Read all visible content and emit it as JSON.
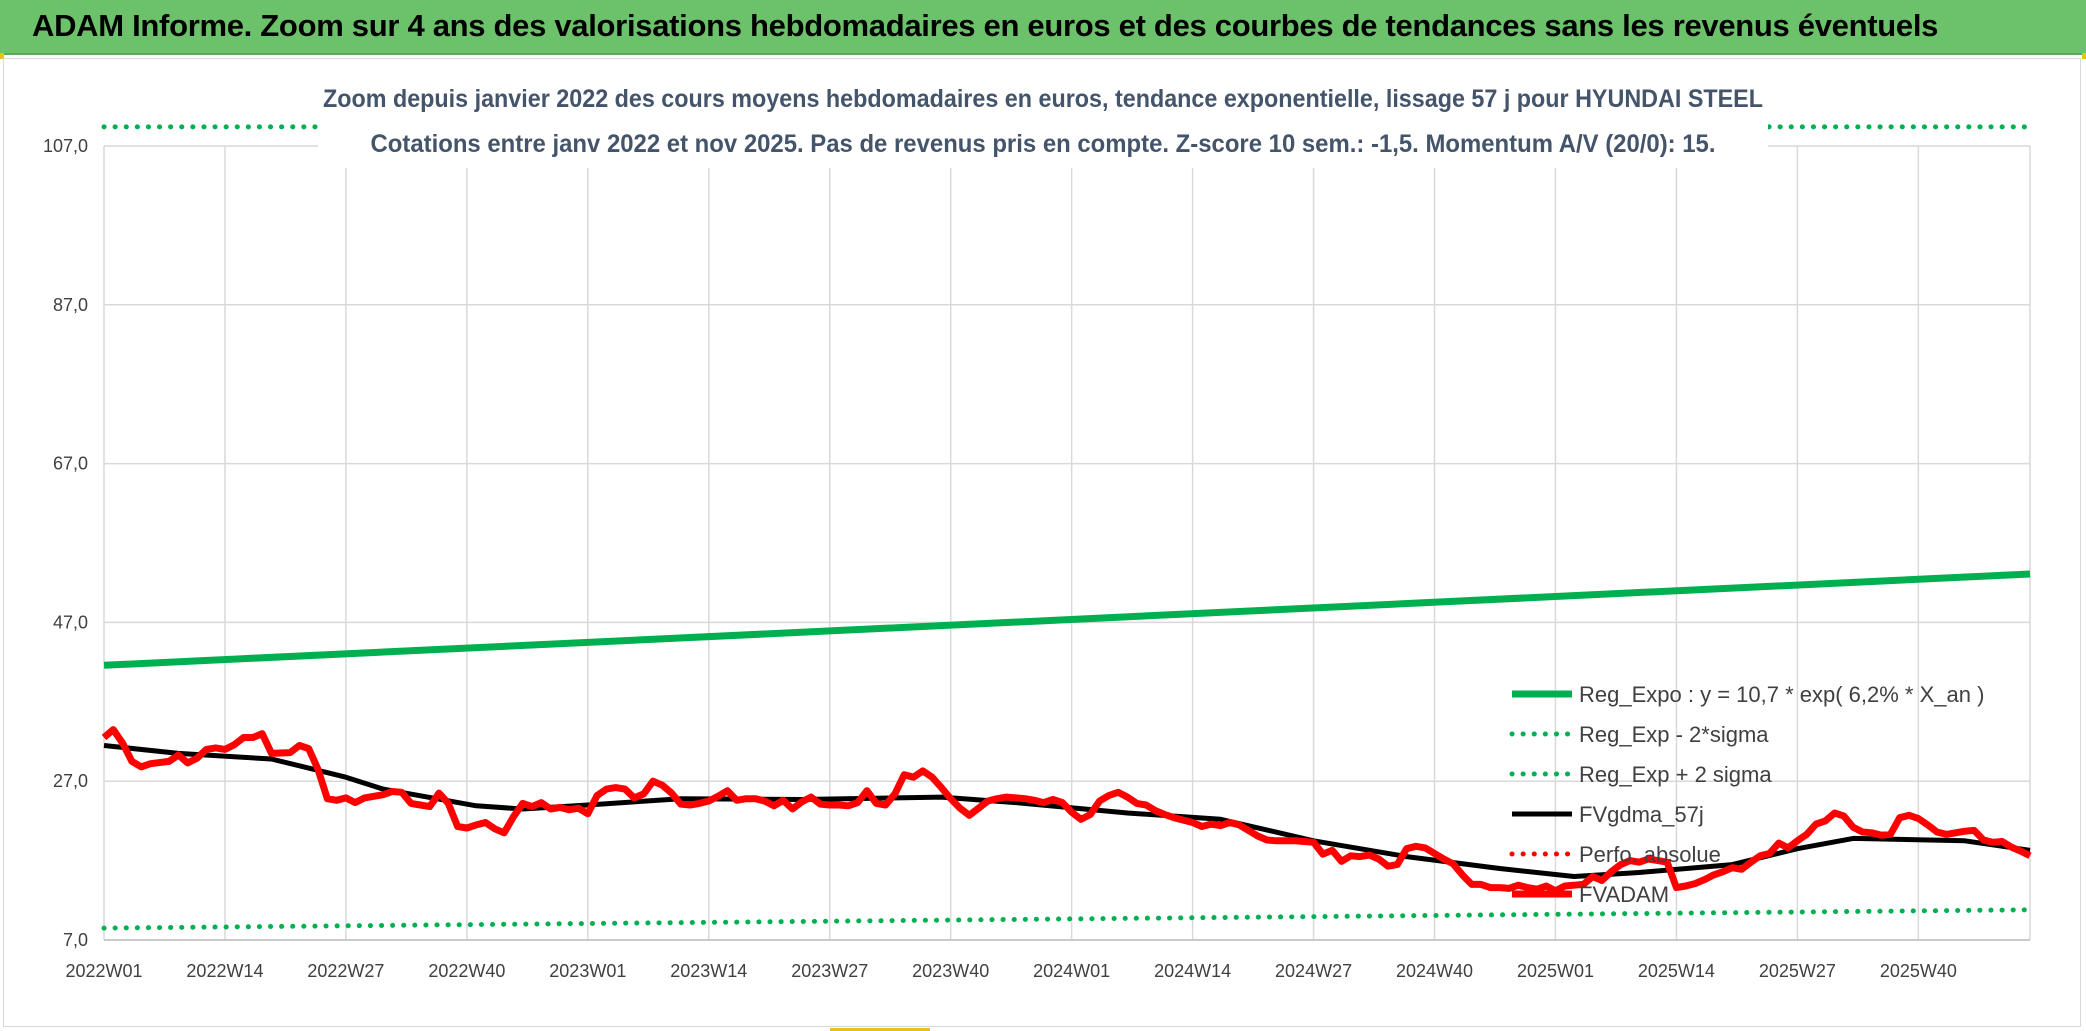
{
  "banner": {
    "title": "ADAM Informe. Zoom sur 4 ans des valorisations hebdomadaires en euros et des courbes de tendances sans les revenus éventuels"
  },
  "colors": {
    "banner_bg": "#6cc26a",
    "trend_green": "#00b050",
    "price_red": "#ff0000",
    "ma_black": "#000000",
    "title_text": "#44546a",
    "grid": "#d9d9d9"
  },
  "chart_data": {
    "type": "line",
    "title_line1": "Zoom depuis janvier 2022 des cours moyens hebdomadaires en euros, tendance exponentielle, lissage 57 j pour HYUNDAI STEEL",
    "title_line2": "Cotations entre janv 2022 et nov 2025. Pas de revenus pris en compte. Z-score 10 sem.: -1,5. Momentum A/V (20/0): 15.",
    "ylim": [
      7,
      107
    ],
    "yticks": [
      "7,0",
      "27,0",
      "47,0",
      "67,0",
      "87,0",
      "107,0"
    ],
    "ytick_values": [
      7,
      27,
      47,
      67,
      87,
      107
    ],
    "xtick_labels": [
      "2022W01",
      "2022W14",
      "2022W27",
      "2022W40",
      "2023W01",
      "2023W14",
      "2023W27",
      "2023W40",
      "2024W01",
      "2024W14",
      "2024W27",
      "2024W40",
      "2025W01",
      "2025W14",
      "2025W27",
      "2025W40"
    ],
    "xtick_index": [
      0,
      13,
      26,
      39,
      52,
      65,
      78,
      91,
      104,
      117,
      130,
      143,
      156,
      169,
      182,
      195
    ],
    "n_weeks": 207,
    "grid": true,
    "legend_position": "right",
    "series": [
      {
        "name": "Reg_Expo : y = 10,7 * exp( 6,2% *  X_an )",
        "style": "solid-thick",
        "color": "#00b050",
        "knots": [
          [
            0,
            41.6
          ],
          [
            207,
            53.1
          ]
        ]
      },
      {
        "name": "Reg_Exp - 2*sigma",
        "style": "dotted",
        "color": "#00b050",
        "knots": [
          [
            0,
            8.5
          ],
          [
            207,
            10.8
          ]
        ]
      },
      {
        "name": "Reg_Exp + 2 sigma",
        "style": "dotted",
        "color": "#00b050",
        "knots": [
          [
            0,
            109.4
          ],
          [
            207,
            109.4
          ]
        ]
      },
      {
        "name": "FVgdma_57j",
        "style": "solid",
        "color": "#000000",
        "knots": [
          [
            0,
            31.5
          ],
          [
            8,
            30.5
          ],
          [
            18,
            29.8
          ],
          [
            26,
            27.5
          ],
          [
            30,
            26.0
          ],
          [
            40,
            23.9
          ],
          [
            45,
            23.5
          ],
          [
            52,
            24.0
          ],
          [
            62,
            24.8
          ],
          [
            75,
            24.7
          ],
          [
            90,
            25.0
          ],
          [
            98,
            24.3
          ],
          [
            110,
            23.0
          ],
          [
            120,
            22.2
          ],
          [
            130,
            19.5
          ],
          [
            140,
            17.5
          ],
          [
            150,
            16.0
          ],
          [
            158,
            15.0
          ],
          [
            165,
            15.5
          ],
          [
            175,
            16.5
          ],
          [
            182,
            18.5
          ],
          [
            188,
            19.8
          ],
          [
            200,
            19.5
          ],
          [
            207,
            18.3
          ]
        ]
      },
      {
        "name": "Perfo. absolue",
        "style": "dotted",
        "color": "#ff0000",
        "knots": []
      },
      {
        "name": "FVADAM",
        "style": "solid-thick",
        "color": "#ff0000",
        "knots": [
          [
            0,
            32.5
          ],
          [
            1,
            33.5
          ],
          [
            2,
            31.8
          ],
          [
            3,
            29.5
          ],
          [
            4,
            28.8
          ],
          [
            5,
            29.2
          ],
          [
            7,
            29.5
          ],
          [
            8,
            30.3
          ],
          [
            9,
            29.3
          ],
          [
            10,
            29.9
          ],
          [
            11,
            31.0
          ],
          [
            12,
            31.2
          ],
          [
            13,
            31.0
          ],
          [
            14,
            31.6
          ],
          [
            15,
            32.5
          ],
          [
            16,
            32.5
          ],
          [
            17,
            33.0
          ],
          [
            18,
            30.5
          ],
          [
            20,
            30.6
          ],
          [
            21,
            31.5
          ],
          [
            22,
            31.1
          ],
          [
            23,
            28.5
          ],
          [
            24,
            24.8
          ],
          [
            25,
            24.6
          ],
          [
            26,
            24.9
          ],
          [
            27,
            24.3
          ],
          [
            28,
            24.9
          ],
          [
            29,
            25.1
          ],
          [
            30,
            25.3
          ],
          [
            31,
            25.7
          ],
          [
            32,
            25.6
          ],
          [
            33,
            24.2
          ],
          [
            34,
            24.0
          ],
          [
            35,
            23.8
          ],
          [
            36,
            25.5
          ],
          [
            37,
            24.2
          ],
          [
            38,
            21.3
          ],
          [
            39,
            21.1
          ],
          [
            40,
            21.5
          ],
          [
            41,
            21.8
          ],
          [
            42,
            21.0
          ],
          [
            43,
            20.5
          ],
          [
            44,
            22.5
          ],
          [
            45,
            24.2
          ],
          [
            46,
            23.8
          ],
          [
            47,
            24.3
          ],
          [
            48,
            23.5
          ],
          [
            49,
            23.7
          ],
          [
            50,
            23.4
          ],
          [
            51,
            23.6
          ],
          [
            52,
            22.9
          ],
          [
            53,
            25.2
          ],
          [
            54,
            26.0
          ],
          [
            55,
            26.2
          ],
          [
            56,
            26.0
          ],
          [
            57,
            24.9
          ],
          [
            58,
            25.4
          ],
          [
            59,
            27.0
          ],
          [
            60,
            26.5
          ],
          [
            61,
            25.5
          ],
          [
            62,
            24.1
          ],
          [
            63,
            24.0
          ],
          [
            64,
            24.2
          ],
          [
            65,
            24.5
          ],
          [
            66,
            25.1
          ],
          [
            67,
            25.8
          ],
          [
            68,
            24.6
          ],
          [
            69,
            24.8
          ],
          [
            70,
            24.8
          ],
          [
            71,
            24.5
          ],
          [
            72,
            23.9
          ],
          [
            73,
            24.6
          ],
          [
            74,
            23.5
          ],
          [
            75,
            24.4
          ],
          [
            76,
            25.0
          ],
          [
            77,
            24.1
          ],
          [
            78,
            24.0
          ],
          [
            79,
            24.0
          ],
          [
            80,
            23.9
          ],
          [
            81,
            24.3
          ],
          [
            82,
            25.8
          ],
          [
            83,
            24.2
          ],
          [
            84,
            24.0
          ],
          [
            85,
            25.4
          ],
          [
            86,
            27.8
          ],
          [
            87,
            27.5
          ],
          [
            88,
            28.3
          ],
          [
            89,
            27.5
          ],
          [
            90,
            26.2
          ],
          [
            91,
            24.8
          ],
          [
            92,
            23.6
          ],
          [
            93,
            22.7
          ],
          [
            94,
            23.6
          ],
          [
            95,
            24.5
          ],
          [
            96,
            24.8
          ],
          [
            97,
            25.0
          ],
          [
            98,
            24.9
          ],
          [
            99,
            24.8
          ],
          [
            100,
            24.6
          ],
          [
            101,
            24.3
          ],
          [
            102,
            24.7
          ],
          [
            103,
            24.3
          ],
          [
            104,
            23.1
          ],
          [
            105,
            22.2
          ],
          [
            106,
            22.8
          ],
          [
            107,
            24.5
          ],
          [
            108,
            25.2
          ],
          [
            109,
            25.6
          ],
          [
            110,
            25.0
          ],
          [
            111,
            24.2
          ],
          [
            112,
            24.0
          ],
          [
            113,
            23.3
          ],
          [
            114,
            22.8
          ],
          [
            115,
            22.4
          ],
          [
            116,
            22.1
          ],
          [
            117,
            21.8
          ],
          [
            118,
            21.3
          ],
          [
            119,
            21.6
          ],
          [
            120,
            21.4
          ],
          [
            121,
            21.8
          ],
          [
            122,
            21.5
          ],
          [
            123,
            20.8
          ],
          [
            124,
            20.1
          ],
          [
            125,
            19.6
          ],
          [
            126,
            19.5
          ],
          [
            127,
            19.5
          ],
          [
            128,
            19.5
          ],
          [
            129,
            19.4
          ],
          [
            130,
            19.3
          ],
          [
            131,
            17.8
          ],
          [
            132,
            18.3
          ],
          [
            133,
            16.9
          ],
          [
            134,
            17.6
          ],
          [
            135,
            17.5
          ],
          [
            136,
            17.7
          ],
          [
            137,
            17.2
          ],
          [
            138,
            16.3
          ],
          [
            139,
            16.5
          ],
          [
            140,
            18.5
          ],
          [
            141,
            18.8
          ],
          [
            142,
            18.6
          ],
          [
            143,
            17.9
          ],
          [
            144,
            17.2
          ],
          [
            145,
            16.6
          ],
          [
            146,
            15.2
          ],
          [
            147,
            14.0
          ],
          [
            148,
            14.0
          ],
          [
            149,
            13.6
          ],
          [
            150,
            13.6
          ],
          [
            151,
            13.5
          ],
          [
            152,
            13.9
          ],
          [
            153,
            13.6
          ],
          [
            154,
            13.4
          ],
          [
            155,
            13.8
          ],
          [
            156,
            13.2
          ],
          [
            157,
            13.8
          ],
          [
            158,
            13.9
          ],
          [
            159,
            14.0
          ],
          [
            160,
            15.0
          ],
          [
            161,
            14.5
          ],
          [
            162,
            15.6
          ],
          [
            163,
            16.5
          ],
          [
            164,
            17.0
          ],
          [
            165,
            16.8
          ],
          [
            166,
            17.2
          ],
          [
            167,
            17.0
          ],
          [
            168,
            16.8
          ],
          [
            169,
            13.6
          ],
          [
            170,
            13.8
          ],
          [
            171,
            14.1
          ],
          [
            172,
            14.6
          ],
          [
            173,
            15.2
          ],
          [
            174,
            15.6
          ],
          [
            175,
            16.1
          ],
          [
            176,
            15.9
          ],
          [
            177,
            16.8
          ],
          [
            178,
            17.6
          ],
          [
            179,
            17.9
          ],
          [
            180,
            19.2
          ],
          [
            181,
            18.6
          ],
          [
            182,
            19.5
          ],
          [
            183,
            20.3
          ],
          [
            184,
            21.6
          ],
          [
            185,
            22.0
          ],
          [
            186,
            23.0
          ],
          [
            187,
            22.6
          ],
          [
            188,
            21.2
          ],
          [
            189,
            20.6
          ],
          [
            190,
            20.5
          ],
          [
            191,
            20.2
          ],
          [
            192,
            20.3
          ],
          [
            193,
            22.4
          ],
          [
            194,
            22.7
          ],
          [
            195,
            22.3
          ],
          [
            196,
            21.5
          ],
          [
            197,
            20.6
          ],
          [
            198,
            20.3
          ],
          [
            199,
            20.5
          ],
          [
            200,
            20.7
          ],
          [
            201,
            20.8
          ],
          [
            202,
            19.6
          ],
          [
            203,
            19.3
          ],
          [
            204,
            19.4
          ],
          [
            205,
            18.7
          ],
          [
            206,
            18.2
          ],
          [
            207,
            17.6
          ]
        ]
      }
    ]
  }
}
